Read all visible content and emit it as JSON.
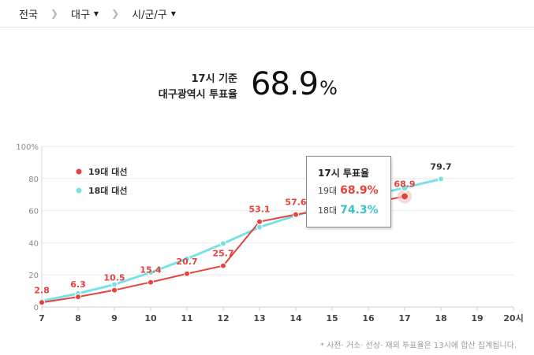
{
  "breadcrumb": {
    "items": [
      {
        "label": "전국"
      },
      {
        "label": "대구"
      },
      {
        "label": "시/군/구"
      }
    ]
  },
  "headline": {
    "line1": "17시 기준",
    "line2": "대구광역시 투표율",
    "value": "68.9",
    "unit": "%"
  },
  "legend": [
    {
      "label": "19대 대선",
      "color": "#e8413c"
    },
    {
      "label": "18대 대선",
      "color": "#79e1e6"
    }
  ],
  "tooltip": {
    "title": "17시 투표율",
    "rows": [
      {
        "label": "19대",
        "value": "68.9%",
        "color": "#e8413c"
      },
      {
        "label": "18대",
        "value": "74.3%",
        "color": "#3cc3c8"
      }
    ]
  },
  "footnote": "* 사전· 거소· 선상· 재외 투표율은 13시에 합산 집계됩니다.",
  "chart_data": {
    "type": "line",
    "x": [
      7,
      8,
      9,
      10,
      11,
      12,
      13,
      14,
      15,
      16,
      17,
      18,
      19,
      20
    ],
    "x_tick_labels": [
      "7",
      "8",
      "9",
      "10",
      "11",
      "12",
      "13",
      "14",
      "15",
      "16",
      "17",
      "18",
      "19",
      "20시"
    ],
    "y_tick_labels": [
      "0",
      "20",
      "40",
      "60",
      "80",
      "100%"
    ],
    "ylim": [
      0,
      100
    ],
    "grid": "horizontal",
    "legend_position": "top-left",
    "series": [
      {
        "name": "19대 대선",
        "color": "#e8413c",
        "x": [
          7,
          8,
          9,
          10,
          11,
          12,
          13,
          14,
          15,
          16,
          17
        ],
        "values": [
          2.8,
          6.3,
          10.5,
          15.4,
          20.7,
          25.7,
          53.1,
          57.6,
          61,
          64.5,
          68.9
        ],
        "labels": [
          "2.8",
          "6.3",
          "10.5",
          "15.4",
          "20.7",
          "25.7",
          "53.1",
          "57.6",
          "",
          "",
          "68.9"
        ]
      },
      {
        "name": "18대 대선",
        "color": "#79e1e6",
        "x": [
          7,
          8,
          9,
          10,
          11,
          12,
          13,
          14,
          15,
          16,
          17,
          18
        ],
        "values": [
          3.7,
          8.4,
          14,
          21.5,
          30,
          39.5,
          49.7,
          57,
          63.5,
          69,
          74.3,
          79.7
        ],
        "labels": [
          "",
          "",
          "",
          "",
          "",
          "",
          "",
          "",
          "",
          "",
          "",
          "79.7"
        ]
      }
    ]
  }
}
